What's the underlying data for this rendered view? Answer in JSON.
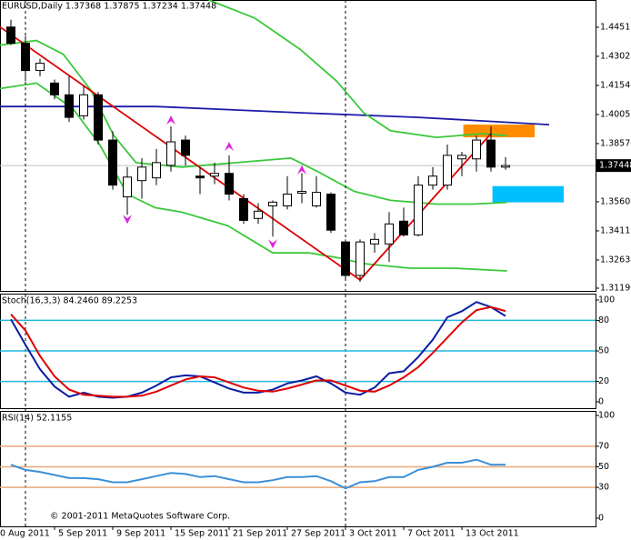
{
  "chart_data": [
    {
      "type": "candlestick",
      "title": "EURUSD,Daily  1.37368 1.37875 1.37234 1.37448",
      "open": [
        1.4452,
        1.4369,
        1.423,
        1.4166,
        1.4106,
        1.3999,
        1.4106,
        1.3875,
        1.3585,
        1.3668,
        1.3682,
        1.3746,
        1.3875,
        1.3691,
        1.3691,
        1.3705,
        1.3576,
        1.3475,
        1.3539,
        1.3539,
        1.3604,
        1.3539,
        1.3599,
        1.3355,
        1.3184,
        1.3345,
        1.3345,
        1.3461,
        1.3391,
        1.3645,
        1.3645,
        1.3779,
        1.3779,
        1.3875,
        1.37368
      ],
      "high": [
        1.4489,
        1.4406,
        1.429,
        1.4184,
        1.42,
        1.415,
        1.412,
        1.392,
        1.3737,
        1.3783,
        1.383,
        1.3945,
        1.3898,
        1.3737,
        1.376,
        1.3797,
        1.3599,
        1.3553,
        1.3567,
        1.3691,
        1.3706,
        1.3691,
        1.3608,
        1.3368,
        1.3368,
        1.34,
        1.3507,
        1.353,
        1.3691,
        1.3737,
        1.3852,
        1.3815,
        1.3898,
        1.3945,
        1.37875
      ],
      "low": [
        1.436,
        1.4175,
        1.42,
        1.4083,
        1.3968,
        1.398,
        1.3852,
        1.3622,
        1.3493,
        1.3576,
        1.3645,
        1.3714,
        1.3746,
        1.3599,
        1.365,
        1.3567,
        1.3447,
        1.3447,
        1.3382,
        1.3521,
        1.3553,
        1.353,
        1.3401,
        1.3161,
        1.3152,
        1.33,
        1.3253,
        1.3382,
        1.3382,
        1.3622,
        1.3622,
        1.3691,
        1.3714,
        1.3714,
        1.37234
      ],
      "close": [
        1.4369,
        1.423,
        1.4267,
        1.4106,
        1.3991,
        1.4106,
        1.3875,
        1.3645,
        1.3686,
        1.3737,
        1.376,
        1.3866,
        1.3797,
        1.3682,
        1.3705,
        1.3599,
        1.3465,
        1.3512,
        1.3558,
        1.3599,
        1.3613,
        1.3608,
        1.3415,
        1.3184,
        1.3355,
        1.3368,
        1.3447,
        1.3391,
        1.3645,
        1.3691,
        1.3797,
        1.3797,
        1.3875,
        1.3737,
        1.37448
      ],
      "xticks": [
        {
          "value": -1,
          "label": "0 Aug 2011"
        },
        {
          "value": 3,
          "label": "5 Sep 2011"
        },
        {
          "value": 7,
          "label": "9 Sep 2011"
        },
        {
          "value": 11,
          "label": "15 Sep 2011"
        },
        {
          "value": 15,
          "label": "21 Sep 2011"
        },
        {
          "value": 19,
          "label": "27 Sep 2011"
        },
        {
          "value": 23,
          "label": "3 Oct 2011"
        },
        {
          "value": 27,
          "label": "7 Oct 2011"
        },
        {
          "value": 31,
          "label": "13 Oct 2011"
        }
      ],
      "separators": [
        1,
        23
      ],
      "ylim": [
        1.3105,
        1.459
      ],
      "yticks": [
        {
          "value": 1.4451,
          "label": "1.44510"
        },
        {
          "value": 1.43025,
          "label": "1.43025"
        },
        {
          "value": 1.4154,
          "label": "1.41540"
        },
        {
          "value": 1.40055,
          "label": "1.40055"
        },
        {
          "value": 1.3857,
          "label": "1.38570"
        },
        {
          "value": 1.356,
          "label": "1.35600"
        },
        {
          "value": 1.34115,
          "label": "1.34115"
        },
        {
          "value": 1.3263,
          "label": "1.32630"
        },
        {
          "value": 1.3119,
          "label": "1.31190"
        }
      ],
      "current_price": {
        "value": 1.37448,
        "label": "1.37448"
      },
      "zones": [
        {
          "color": "#ff8c00",
          "x": [
            31.1,
            36
          ],
          "values": [
            1.3954,
            1.3889
          ]
        },
        {
          "color": "#00bfff",
          "x": [
            33.1,
            38
          ],
          "values": [
            1.364,
            1.3557
          ]
        }
      ],
      "lines": [
        {
          "color": "#1a1aa8",
          "x": [
            -0.75,
            10,
            20,
            28,
            37
          ],
          "values": [
            1.4046,
            1.4046,
            1.4014,
            1.3991,
            1.3954
          ]
        },
        {
          "color": "#3ac83a",
          "x": [
            13.6,
            16.75,
            19.9,
            22.4,
            24.25,
            26.1,
            29.25,
            32.4,
            34.1
          ],
          "values": [
            1.459,
            1.4498,
            1.4337,
            1.4175,
            1.4014,
            1.3922,
            1.3889,
            1.3908,
            1.3898
          ]
        },
        {
          "color": "#3ac83a",
          "x": [
            -0.75,
            1.75,
            3.6,
            5.5,
            7.06,
            8.6,
            11.75,
            15.5,
            19.25,
            21.1,
            23.6,
            26.1,
            29.25,
            31.75,
            34.1
          ],
          "values": [
            1.436,
            1.4383,
            1.4313,
            1.4129,
            1.3899,
            1.376,
            1.3737,
            1.376,
            1.3783,
            1.3714,
            1.3613,
            1.3567,
            1.3548,
            1.3548,
            1.3557
          ]
        },
        {
          "color": "#3ac83a",
          "x": [
            -0.75,
            1.75,
            4.25,
            6.1,
            8,
            9.9,
            11.75,
            14.9,
            18,
            20.5,
            22.4,
            24.25,
            27.4,
            30.5,
            34.1
          ],
          "values": [
            1.4138,
            1.4166,
            1.4037,
            1.3852,
            1.3599,
            1.353,
            1.3507,
            1.3438,
            1.3299,
            1.3299,
            1.3276,
            1.3244,
            1.3221,
            1.3221,
            1.3207
          ]
        },
        {
          "color": "#dd0000",
          "x": [
            -0.75,
            24,
            33
          ],
          "values": [
            1.4452,
            1.3161,
            1.3908
          ]
        }
      ],
      "fractals_up": {
        "color": "#e020e0",
        "x": [
          11,
          15,
          20
        ],
        "values": [
          1.4,
          1.3866,
          1.3746
        ]
      },
      "fractals_down": {
        "color": "#e020e0",
        "x": [
          8,
          18
        ],
        "values": [
          1.3447,
          1.3322
        ]
      }
    },
    {
      "type": "line",
      "title": "Stoch(16,3,3) 84.2460 89.2253",
      "ylim": [
        0,
        100
      ],
      "yticks": [
        0,
        20,
        50,
        80,
        100
      ],
      "levels": [
        20,
        50,
        80
      ],
      "level_color": "#22b8e0",
      "series": [
        {
          "color": "#0a1ea0",
          "values": [
            81,
            56,
            32,
            15,
            5,
            9,
            5,
            4,
            5,
            9,
            16,
            24,
            26,
            25,
            19,
            13,
            9,
            9,
            12,
            18,
            21,
            25,
            18,
            9,
            7,
            14,
            28,
            30,
            44,
            61,
            83,
            89,
            98,
            93,
            84.246
          ]
        },
        {
          "color": "#e00000",
          "values": [
            86,
            70,
            45,
            25,
            12,
            7,
            6,
            5,
            5,
            6,
            10,
            16,
            22,
            25,
            24,
            19,
            14,
            11,
            10,
            13,
            17,
            21,
            21,
            16,
            11,
            10,
            16,
            24,
            34,
            48,
            63,
            78,
            90,
            93,
            89.2253
          ]
        }
      ]
    },
    {
      "type": "line",
      "title": "RSI(14) 52.1155",
      "ylim": [
        0,
        100
      ],
      "yticks": [
        0,
        30,
        50,
        70,
        100
      ],
      "levels": [
        30,
        50,
        70
      ],
      "level_color": "#e8a878",
      "series": [
        {
          "color": "#3a8fd8",
          "values": [
            52,
            47,
            45,
            42,
            39,
            39,
            38,
            35,
            35,
            38,
            41,
            44,
            43,
            40,
            41,
            38,
            35,
            35,
            37,
            40,
            40,
            41,
            36,
            29,
            35,
            36,
            40,
            40,
            47,
            50,
            54,
            54,
            57,
            52,
            52.1155
          ]
        }
      ]
    }
  ],
  "copyright": "© 2001-2011 MetaQuotes Software Corp."
}
